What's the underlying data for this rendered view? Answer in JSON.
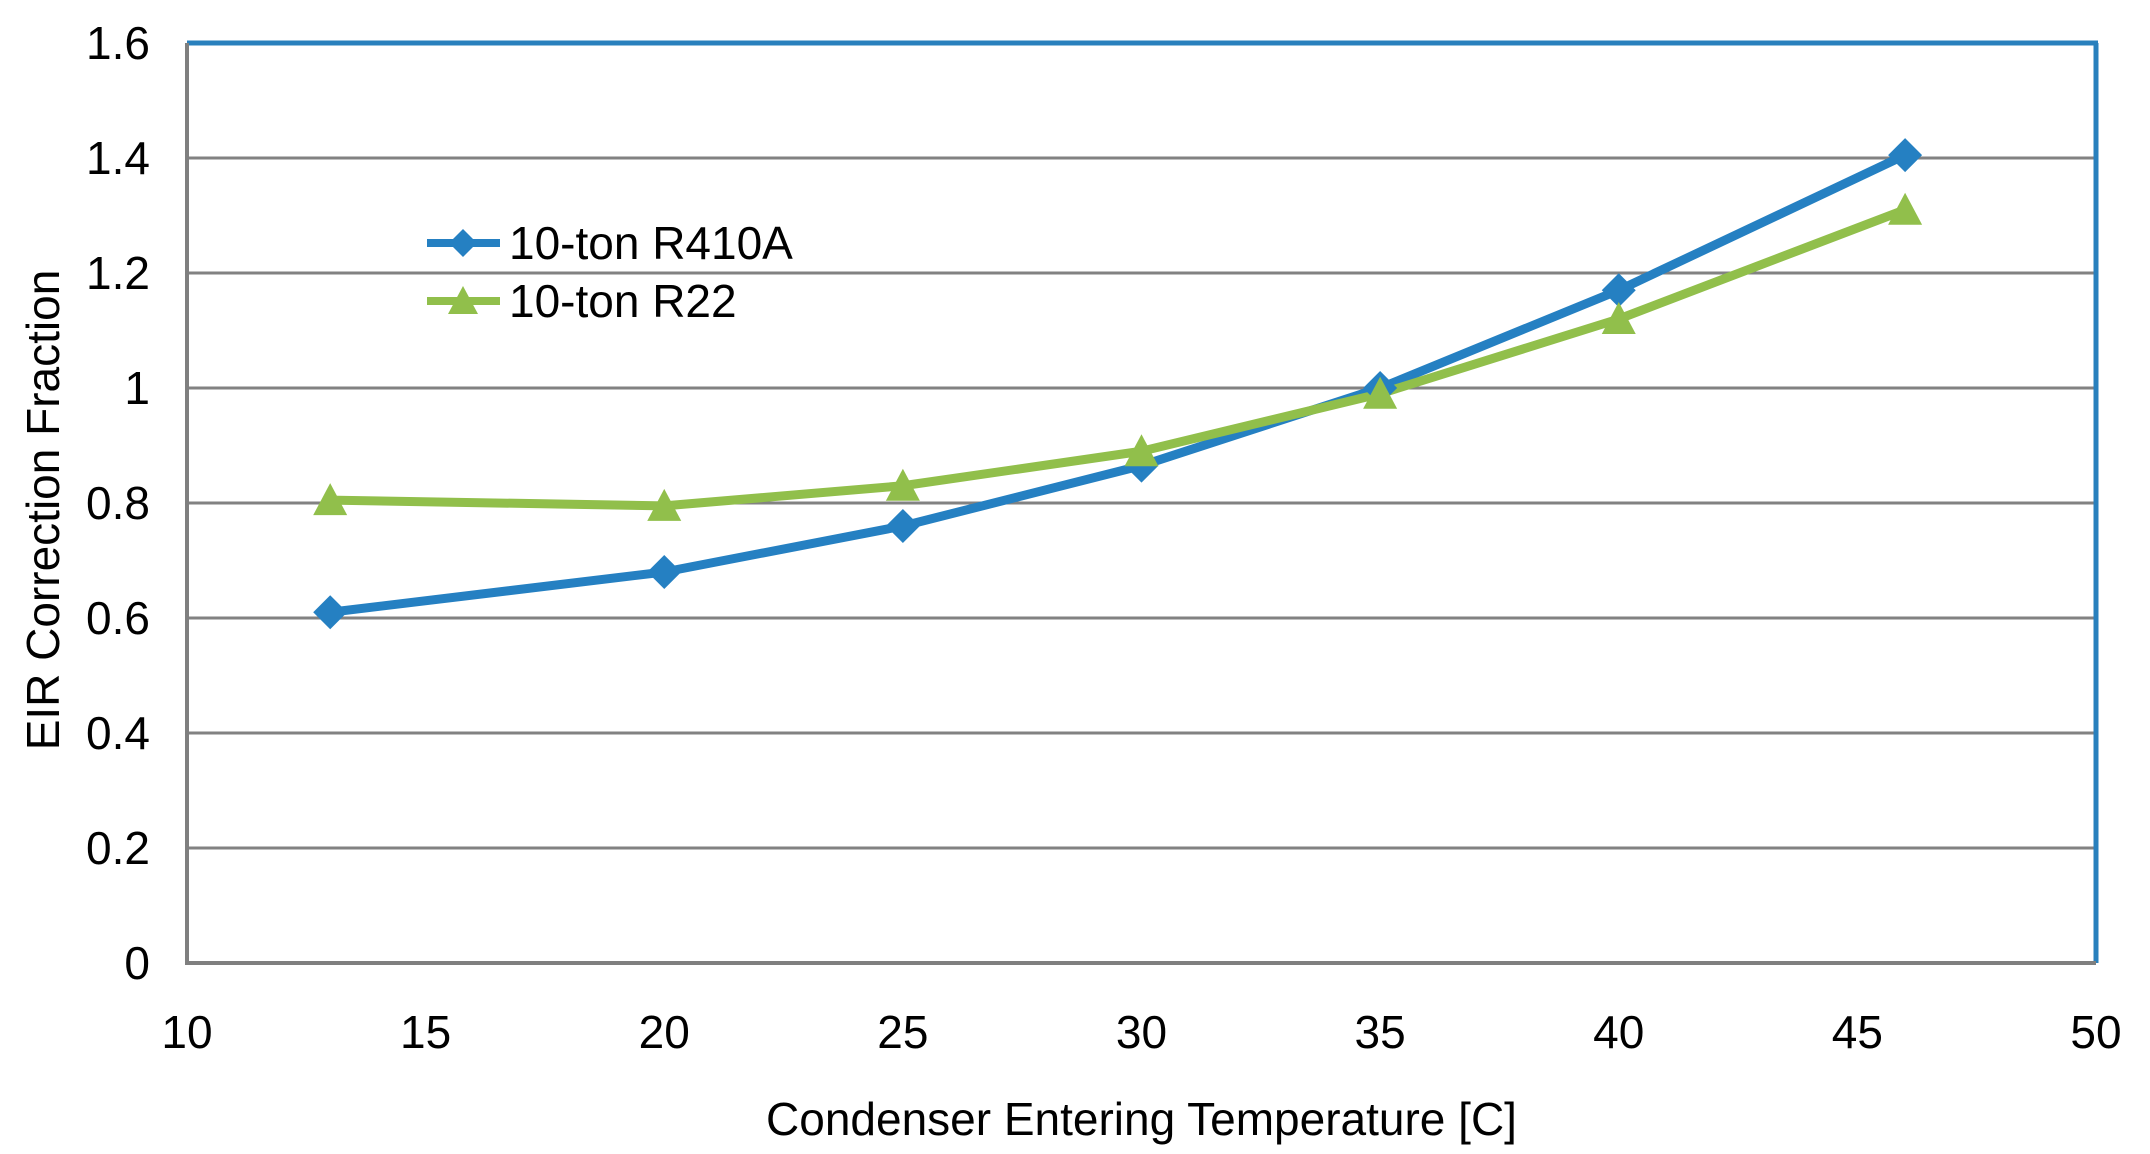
{
  "chart_data": {
    "type": "line",
    "title": "",
    "xlabel": "Condenser Entering Temperature [C]",
    "ylabel": "EIR Correction Fraction",
    "xlim": [
      10,
      50
    ],
    "ylim": [
      0,
      1.6
    ],
    "grid": "horizontal-only",
    "legend_position": "inside-upper-left",
    "x": [
      13,
      20,
      25,
      30,
      35,
      40,
      46
    ],
    "series": [
      {
        "name": "10-ton R410A",
        "marker": "diamond",
        "color": "#2580c2",
        "values": [
          0.61,
          0.68,
          0.76,
          0.865,
          1.0,
          1.17,
          1.405
        ]
      },
      {
        "name": "10-ton R22",
        "marker": "triangle",
        "color": "#91bf4b",
        "values": [
          0.805,
          0.795,
          0.83,
          0.89,
          0.99,
          1.12,
          1.31
        ]
      }
    ],
    "x_ticks": {
      "values": [
        10,
        15,
        20,
        25,
        30,
        35,
        40,
        45,
        50
      ],
      "labels": [
        "10",
        "15",
        "20",
        "25",
        "30",
        "35",
        "40",
        "45",
        "50"
      ]
    },
    "y_ticks": {
      "values": [
        0,
        0.2,
        0.4,
        0.6,
        0.8,
        1.0,
        1.2,
        1.4,
        1.6
      ],
      "labels": [
        "0",
        "0.2",
        "0.4",
        "0.6",
        "0.8",
        "1",
        "1.2",
        "1.4",
        "1.6"
      ]
    }
  },
  "colors": {
    "gridline": "#828282",
    "axis_line": "#7f7f7f",
    "plot_border_top_right": "#2980bd",
    "tick_label": "#000000"
  }
}
